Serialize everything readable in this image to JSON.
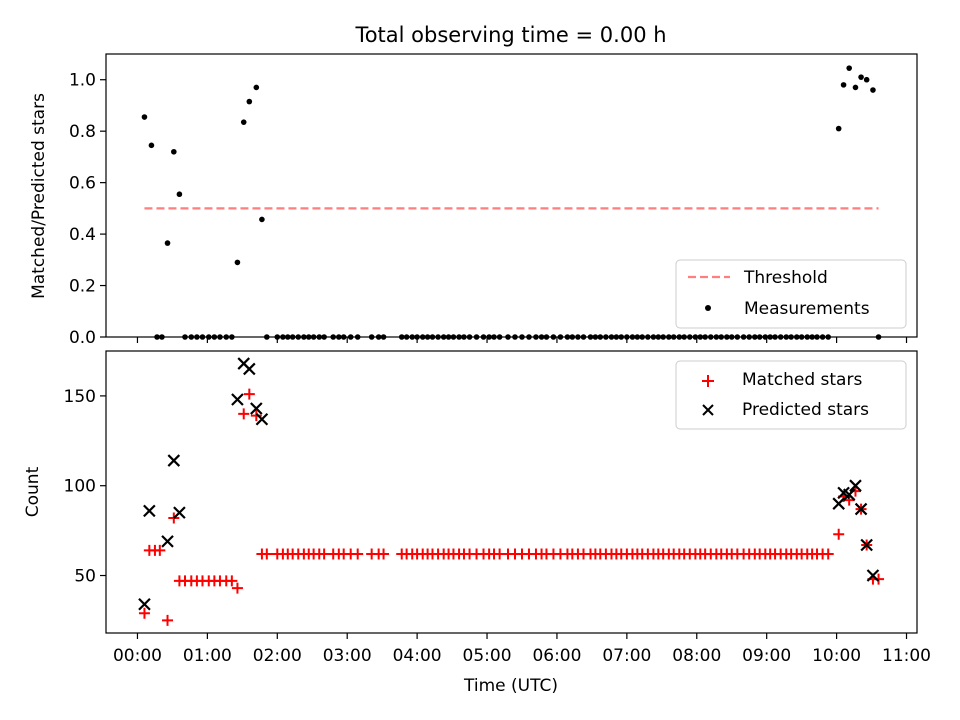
{
  "title": "Total observing time = 0.00 h",
  "chart_data": [
    {
      "type": "scatter",
      "ylabel": "Matched/Predicted stars",
      "ylim": [
        0,
        1.1
      ],
      "yticks": [
        0.0,
        0.2,
        0.4,
        0.6,
        0.8,
        1.0
      ],
      "ytick_labels": [
        "0.0",
        "0.2",
        "0.4",
        "0.6",
        "0.8",
        "1.0"
      ],
      "xlim_hours": [
        -0.45,
        11.15
      ],
      "legend_position": "bottom-right",
      "threshold": {
        "name": "Threshold",
        "value": 0.5,
        "x_start": 0.1,
        "x_end": 10.6,
        "color": "#ff7f7f"
      },
      "measurements": {
        "name": "Measurements",
        "color": "#000000",
        "points": [
          [
            0.1,
            0.855
          ],
          [
            0.2,
            0.745
          ],
          [
            0.28,
            0.0
          ],
          [
            0.35,
            0.0
          ],
          [
            0.43,
            0.365
          ],
          [
            0.52,
            0.72
          ],
          [
            0.6,
            0.555
          ],
          [
            0.68,
            0.0
          ],
          [
            0.77,
            0.0
          ],
          [
            0.85,
            0.0
          ],
          [
            0.93,
            0.0
          ],
          [
            1.02,
            0.0
          ],
          [
            1.1,
            0.0
          ],
          [
            1.18,
            0.0
          ],
          [
            1.27,
            0.0
          ],
          [
            1.35,
            0.0
          ],
          [
            1.43,
            0.29
          ],
          [
            1.52,
            0.835
          ],
          [
            1.6,
            0.915
          ],
          [
            1.7,
            0.97
          ],
          [
            1.78,
            0.457
          ],
          [
            1.85,
            0.0
          ],
          [
            2.0,
            0.0
          ],
          [
            2.08,
            0.0
          ],
          [
            2.15,
            0.0
          ],
          [
            2.22,
            0.0
          ],
          [
            2.3,
            0.0
          ],
          [
            2.38,
            0.0
          ],
          [
            2.45,
            0.0
          ],
          [
            2.52,
            0.0
          ],
          [
            2.6,
            0.0
          ],
          [
            2.67,
            0.0
          ],
          [
            2.8,
            0.0
          ],
          [
            2.88,
            0.0
          ],
          [
            2.95,
            0.0
          ],
          [
            3.05,
            0.0
          ],
          [
            3.15,
            0.0
          ],
          [
            3.35,
            0.0
          ],
          [
            3.45,
            0.0
          ],
          [
            3.52,
            0.0
          ],
          [
            3.78,
            0.0
          ],
          [
            3.85,
            0.0
          ],
          [
            3.93,
            0.0
          ],
          [
            4.0,
            0.0
          ],
          [
            4.08,
            0.0
          ],
          [
            4.15,
            0.0
          ],
          [
            4.22,
            0.0
          ],
          [
            4.3,
            0.0
          ],
          [
            4.38,
            0.0
          ],
          [
            4.45,
            0.0
          ],
          [
            4.52,
            0.0
          ],
          [
            4.6,
            0.0
          ],
          [
            4.67,
            0.0
          ],
          [
            4.75,
            0.0
          ],
          [
            4.85,
            0.0
          ],
          [
            4.95,
            0.0
          ],
          [
            5.03,
            0.0
          ],
          [
            5.1,
            0.0
          ],
          [
            5.18,
            0.0
          ],
          [
            5.3,
            0.0
          ],
          [
            5.4,
            0.0
          ],
          [
            5.5,
            0.0
          ],
          [
            5.6,
            0.0
          ],
          [
            5.7,
            0.0
          ],
          [
            5.78,
            0.0
          ],
          [
            5.85,
            0.0
          ],
          [
            5.95,
            0.0
          ],
          [
            6.05,
            0.0
          ],
          [
            6.15,
            0.0
          ],
          [
            6.22,
            0.0
          ],
          [
            6.3,
            0.0
          ],
          [
            6.38,
            0.0
          ],
          [
            6.48,
            0.0
          ],
          [
            6.55,
            0.0
          ],
          [
            6.62,
            0.0
          ],
          [
            6.7,
            0.0
          ],
          [
            6.78,
            0.0
          ],
          [
            6.85,
            0.0
          ],
          [
            6.92,
            0.0
          ],
          [
            7.0,
            0.0
          ],
          [
            7.08,
            0.0
          ],
          [
            7.15,
            0.0
          ],
          [
            7.22,
            0.0
          ],
          [
            7.3,
            0.0
          ],
          [
            7.38,
            0.0
          ],
          [
            7.45,
            0.0
          ],
          [
            7.52,
            0.0
          ],
          [
            7.6,
            0.0
          ],
          [
            7.67,
            0.0
          ],
          [
            7.75,
            0.0
          ],
          [
            7.82,
            0.0
          ],
          [
            7.9,
            0.0
          ],
          [
            7.98,
            0.0
          ],
          [
            8.05,
            0.0
          ],
          [
            8.12,
            0.0
          ],
          [
            8.2,
            0.0
          ],
          [
            8.28,
            0.0
          ],
          [
            8.35,
            0.0
          ],
          [
            8.43,
            0.0
          ],
          [
            8.5,
            0.0
          ],
          [
            8.58,
            0.0
          ],
          [
            8.67,
            0.0
          ],
          [
            8.75,
            0.0
          ],
          [
            8.83,
            0.0
          ],
          [
            8.9,
            0.0
          ],
          [
            8.98,
            0.0
          ],
          [
            9.05,
            0.0
          ],
          [
            9.12,
            0.0
          ],
          [
            9.2,
            0.0
          ],
          [
            9.28,
            0.0
          ],
          [
            9.35,
            0.0
          ],
          [
            9.43,
            0.0
          ],
          [
            9.5,
            0.0
          ],
          [
            9.58,
            0.0
          ],
          [
            9.65,
            0.0
          ],
          [
            9.72,
            0.0
          ],
          [
            9.8,
            0.0
          ],
          [
            9.88,
            0.0
          ],
          [
            10.03,
            0.81
          ],
          [
            10.1,
            0.98
          ],
          [
            10.18,
            1.045
          ],
          [
            10.27,
            0.97
          ],
          [
            10.35,
            1.01
          ],
          [
            10.43,
            1.0
          ],
          [
            10.52,
            0.96
          ],
          [
            10.6,
            0.0
          ]
        ]
      }
    },
    {
      "type": "scatter",
      "xlabel": "Time (UTC)",
      "ylabel": "Count",
      "ylim": [
        18,
        175
      ],
      "yticks": [
        50,
        100,
        150
      ],
      "ytick_labels": [
        "50",
        "100",
        "150"
      ],
      "xlim_hours": [
        -0.45,
        11.15
      ],
      "xticks_hours": [
        0,
        1,
        2,
        3,
        4,
        5,
        6,
        7,
        8,
        9,
        10,
        11
      ],
      "xtick_labels": [
        "00:00",
        "01:00",
        "02:00",
        "03:00",
        "04:00",
        "05:00",
        "06:00",
        "07:00",
        "08:00",
        "09:00",
        "10:00",
        "11:00"
      ],
      "legend_position": "top-right",
      "series": [
        {
          "name": "Matched stars",
          "marker": "plus",
          "color": "#ff0000",
          "points": [
            [
              0.1,
              29
            ],
            [
              0.17,
              64
            ],
            [
              0.25,
              64
            ],
            [
              0.32,
              64
            ],
            [
              0.43,
              25
            ],
            [
              0.52,
              82
            ],
            [
              0.6,
              47
            ],
            [
              0.68,
              47
            ],
            [
              0.77,
              47
            ],
            [
              0.85,
              47
            ],
            [
              0.93,
              47
            ],
            [
              1.02,
              47
            ],
            [
              1.1,
              47
            ],
            [
              1.18,
              47
            ],
            [
              1.27,
              47
            ],
            [
              1.35,
              47
            ],
            [
              1.43,
              43
            ],
            [
              1.52,
              140
            ],
            [
              1.6,
              151
            ],
            [
              1.7,
              139
            ],
            [
              1.78,
              62
            ],
            [
              1.85,
              62
            ],
            [
              2.0,
              62
            ],
            [
              2.08,
              62
            ],
            [
              2.15,
              62
            ],
            [
              2.22,
              62
            ],
            [
              2.3,
              62
            ],
            [
              2.38,
              62
            ],
            [
              2.45,
              62
            ],
            [
              2.52,
              62
            ],
            [
              2.6,
              62
            ],
            [
              2.67,
              62
            ],
            [
              2.8,
              62
            ],
            [
              2.88,
              62
            ],
            [
              2.95,
              62
            ],
            [
              3.05,
              62
            ],
            [
              3.15,
              62
            ],
            [
              3.35,
              62
            ],
            [
              3.45,
              62
            ],
            [
              3.52,
              62
            ],
            [
              3.78,
              62
            ],
            [
              3.85,
              62
            ],
            [
              3.93,
              62
            ],
            [
              4.0,
              62
            ],
            [
              4.08,
              62
            ],
            [
              4.15,
              62
            ],
            [
              4.22,
              62
            ],
            [
              4.3,
              62
            ],
            [
              4.38,
              62
            ],
            [
              4.45,
              62
            ],
            [
              4.52,
              62
            ],
            [
              4.6,
              62
            ],
            [
              4.67,
              62
            ],
            [
              4.75,
              62
            ],
            [
              4.85,
              62
            ],
            [
              4.95,
              62
            ],
            [
              5.03,
              62
            ],
            [
              5.1,
              62
            ],
            [
              5.18,
              62
            ],
            [
              5.3,
              62
            ],
            [
              5.4,
              62
            ],
            [
              5.5,
              62
            ],
            [
              5.6,
              62
            ],
            [
              5.7,
              62
            ],
            [
              5.78,
              62
            ],
            [
              5.85,
              62
            ],
            [
              5.95,
              62
            ],
            [
              6.05,
              62
            ],
            [
              6.15,
              62
            ],
            [
              6.22,
              62
            ],
            [
              6.3,
              62
            ],
            [
              6.38,
              62
            ],
            [
              6.48,
              62
            ],
            [
              6.55,
              62
            ],
            [
              6.62,
              62
            ],
            [
              6.7,
              62
            ],
            [
              6.78,
              62
            ],
            [
              6.85,
              62
            ],
            [
              6.92,
              62
            ],
            [
              7.0,
              62
            ],
            [
              7.08,
              62
            ],
            [
              7.15,
              62
            ],
            [
              7.22,
              62
            ],
            [
              7.3,
              62
            ],
            [
              7.38,
              62
            ],
            [
              7.45,
              62
            ],
            [
              7.52,
              62
            ],
            [
              7.6,
              62
            ],
            [
              7.67,
              62
            ],
            [
              7.75,
              62
            ],
            [
              7.82,
              62
            ],
            [
              7.9,
              62
            ],
            [
              7.98,
              62
            ],
            [
              8.05,
              62
            ],
            [
              8.12,
              62
            ],
            [
              8.2,
              62
            ],
            [
              8.28,
              62
            ],
            [
              8.35,
              62
            ],
            [
              8.43,
              62
            ],
            [
              8.5,
              62
            ],
            [
              8.58,
              62
            ],
            [
              8.67,
              62
            ],
            [
              8.75,
              62
            ],
            [
              8.83,
              62
            ],
            [
              8.9,
              62
            ],
            [
              8.98,
              62
            ],
            [
              9.05,
              62
            ],
            [
              9.12,
              62
            ],
            [
              9.2,
              62
            ],
            [
              9.28,
              62
            ],
            [
              9.35,
              62
            ],
            [
              9.43,
              62
            ],
            [
              9.5,
              62
            ],
            [
              9.58,
              62
            ],
            [
              9.65,
              62
            ],
            [
              9.72,
              62
            ],
            [
              9.8,
              62
            ],
            [
              9.88,
              62
            ],
            [
              10.03,
              73
            ],
            [
              10.1,
              94
            ],
            [
              10.18,
              92
            ],
            [
              10.27,
              97
            ],
            [
              10.35,
              87
            ],
            [
              10.43,
              67
            ],
            [
              10.52,
              48
            ],
            [
              10.6,
              48
            ]
          ]
        },
        {
          "name": "Predicted stars",
          "marker": "x",
          "color": "#000000",
          "points": [
            [
              0.1,
              34
            ],
            [
              0.17,
              86
            ],
            [
              0.43,
              69
            ],
            [
              0.52,
              114
            ],
            [
              0.6,
              85
            ],
            [
              1.43,
              148
            ],
            [
              1.52,
              168
            ],
            [
              1.6,
              165
            ],
            [
              1.7,
              143
            ],
            [
              1.78,
              137
            ],
            [
              10.03,
              90
            ],
            [
              10.1,
              96
            ],
            [
              10.18,
              95
            ],
            [
              10.27,
              100
            ],
            [
              10.35,
              87
            ],
            [
              10.43,
              67
            ],
            [
              10.52,
              50
            ]
          ]
        }
      ]
    }
  ]
}
